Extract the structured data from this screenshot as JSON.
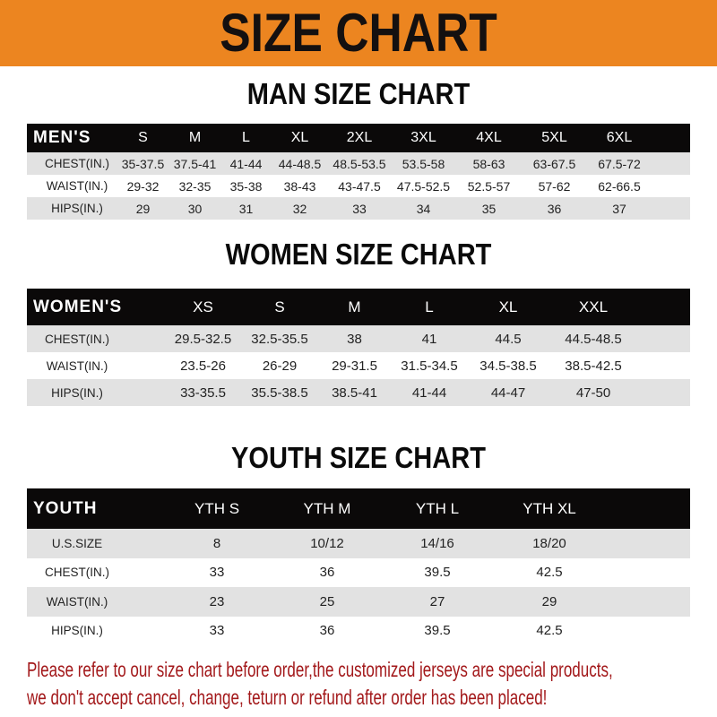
{
  "title": "SIZE CHART",
  "colors": {
    "banner": "#ec8520",
    "header_row": "#0b0909",
    "stripe": "#e2e2e2",
    "notice": "#a3191b"
  },
  "men": {
    "title": "MAN SIZE CHART",
    "header": [
      "MEN'S",
      "S",
      "M",
      "L",
      "XL",
      "2XL",
      "3XL",
      "4XL",
      "5XL",
      "6XL"
    ],
    "rows": [
      [
        "CHEST(IN.)",
        "35-37.5",
        "37.5-41",
        "41-44",
        "44-48.5",
        "48.5-53.5",
        "53.5-58",
        "58-63",
        "63-67.5",
        "67.5-72"
      ],
      [
        "WAIST(IN.)",
        "29-32",
        "32-35",
        "35-38",
        "38-43",
        "43-47.5",
        "47.5-52.5",
        "52.5-57",
        "57-62",
        "62-66.5"
      ],
      [
        "HIPS(IN.)",
        "29",
        "30",
        "31",
        "32",
        "33",
        "34",
        "35",
        "36",
        "37"
      ]
    ]
  },
  "women": {
    "title": "WOMEN SIZE CHART",
    "header": [
      "WOMEN'S",
      "XS",
      "S",
      "M",
      "L",
      "XL",
      "XXL"
    ],
    "rows": [
      [
        "CHEST(IN.)",
        "29.5-32.5",
        "32.5-35.5",
        "38",
        "41",
        "44.5",
        "44.5-48.5"
      ],
      [
        "WAIST(IN.)",
        "23.5-26",
        "26-29",
        "29-31.5",
        "31.5-34.5",
        "34.5-38.5",
        "38.5-42.5"
      ],
      [
        "HIPS(IN.)",
        "33-35.5",
        "35.5-38.5",
        "38.5-41",
        "41-44",
        "44-47",
        "47-50"
      ]
    ]
  },
  "youth": {
    "title": "YOUTH SIZE CHART",
    "header": [
      "YOUTH",
      "YTH S",
      "YTH M",
      "YTH L",
      "YTH XL"
    ],
    "rows": [
      [
        "U.S.SIZE",
        "8",
        "10/12",
        "14/16",
        "18/20"
      ],
      [
        "CHEST(IN.)",
        "33",
        "36",
        "39.5",
        "42.5"
      ],
      [
        "WAIST(IN.)",
        "23",
        "25",
        "27",
        "29"
      ],
      [
        "HIPS(IN.)",
        "33",
        "36",
        "39.5",
        "42.5"
      ]
    ]
  },
  "notice": {
    "line1": "Please refer to our size chart before order,the customized jerseys are special products,",
    "line2": "we don't accept cancel, change, teturn or refund after order has been placed!"
  }
}
